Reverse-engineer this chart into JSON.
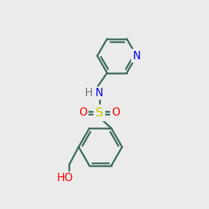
{
  "bg_color": "#ebebeb",
  "bond_color": "#3a6b5a",
  "bond_width": 1.8,
  "atom_colors": {
    "N": "#0000ee",
    "O": "#ff0000",
    "S": "#cccc00",
    "H": "#707070"
  },
  "font_size_atom": 11,
  "font_size_S": 12
}
